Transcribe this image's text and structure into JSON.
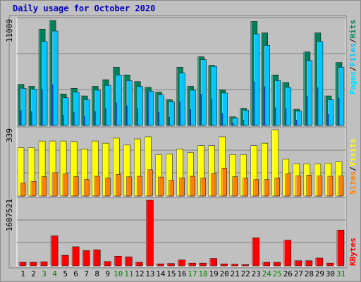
{
  "title": "Daily usage for October 2020",
  "colors": {
    "hits": "#00805a",
    "files": "#00c8ff",
    "pages": "#00e0ff",
    "visits": "#ffff00",
    "sites": "#ff8000",
    "kbytes": "#ff0000",
    "weekend_label": "#008000",
    "weekday_label": "#000000",
    "title": "#0000c0"
  },
  "chart_data": [
    {
      "type": "bar",
      "panel": "hits-files-pages",
      "max_label": "11009",
      "ylim": [
        0,
        11009
      ],
      "categories": [
        "1",
        "2",
        "3",
        "4",
        "5",
        "6",
        "7",
        "8",
        "9",
        "10",
        "11",
        "12",
        "13",
        "14",
        "15",
        "16",
        "17",
        "18",
        "19",
        "20",
        "21",
        "22",
        "23",
        "24",
        "25",
        "26",
        "27",
        "28",
        "29",
        "30",
        "31"
      ],
      "weekend_days": [
        "3",
        "4",
        "10",
        "11",
        "17",
        "18",
        "24",
        "25",
        "31"
      ],
      "legend": [
        "Pages",
        "/",
        "Files",
        "/",
        "Hits"
      ],
      "series": [
        {
          "name": "Hits",
          "values": [
            4300,
            4100,
            10100,
            11000,
            3300,
            3900,
            3100,
            4100,
            4800,
            6100,
            5300,
            4600,
            4000,
            3500,
            2700,
            6100,
            4100,
            7200,
            6300,
            3700,
            900,
            1800,
            10900,
            9700,
            5300,
            4500,
            1700,
            7700,
            9700,
            3100,
            6600
          ]
        },
        {
          "name": "Files",
          "values": [
            3900,
            3800,
            8800,
            9900,
            2900,
            3500,
            2700,
            3700,
            4200,
            5300,
            4700,
            4100,
            3600,
            3200,
            2500,
            5500,
            3700,
            6900,
            6200,
            3400,
            800,
            1600,
            9600,
            8400,
            4700,
            4000,
            1500,
            6800,
            8800,
            2700,
            6100
          ]
        },
        {
          "name": "Pages",
          "values": [
            1600,
            1500,
            3800,
            4300,
            1100,
            1400,
            1000,
            1500,
            1800,
            2400,
            2100,
            1800,
            3500,
            1400,
            900,
            2500,
            1700,
            3300,
            2800,
            1300,
            300,
            600,
            4600,
            4100,
            1900,
            1800,
            600,
            3100,
            4000,
            1200,
            2900
          ]
        }
      ]
    },
    {
      "type": "bar",
      "panel": "visits-sites",
      "max_label": "339",
      "ylim": [
        0,
        339
      ],
      "categories": [
        "1",
        "2",
        "3",
        "4",
        "5",
        "6",
        "7",
        "8",
        "9",
        "10",
        "11",
        "12",
        "13",
        "14",
        "15",
        "16",
        "17",
        "18",
        "19",
        "20",
        "21",
        "22",
        "23",
        "24",
        "25",
        "26",
        "27",
        "28",
        "29",
        "30",
        "31"
      ],
      "legend": [
        "Sites",
        "/",
        "Visits"
      ],
      "series": [
        {
          "name": "Visits",
          "values": [
            247,
            247,
            281,
            281,
            281,
            278,
            240,
            281,
            270,
            296,
            261,
            292,
            303,
            211,
            215,
            240,
            222,
            257,
            257,
            303,
            211,
            211,
            257,
            270,
            339,
            188,
            164,
            164,
            164,
            168,
            175
          ]
        },
        {
          "name": "Sites",
          "values": [
            66,
            75,
            99,
            119,
            113,
            99,
            84,
            101,
            92,
            110,
            98,
            101,
            134,
            97,
            81,
            92,
            101,
            92,
            115,
            143,
            99,
            92,
            84,
            84,
            92,
            113,
            103,
            107,
            102,
            101,
            102
          ]
        }
      ]
    },
    {
      "type": "bar",
      "panel": "kbytes",
      "max_label": "1687521",
      "ylim": [
        0,
        1687521
      ],
      "categories": [
        "1",
        "2",
        "3",
        "4",
        "5",
        "6",
        "7",
        "8",
        "9",
        "10",
        "11",
        "12",
        "13",
        "14",
        "15",
        "16",
        "17",
        "18",
        "19",
        "20",
        "21",
        "22",
        "23",
        "24",
        "25",
        "26",
        "27",
        "28",
        "29",
        "30",
        "31"
      ],
      "legend": [
        "KBytes"
      ],
      "series": [
        {
          "name": "KBytes",
          "values": [
            90000,
            90000,
            100000,
            770000,
            270000,
            490000,
            390000,
            410000,
            110000,
            250000,
            230000,
            90000,
            1687521,
            50000,
            60000,
            150000,
            70000,
            70000,
            190000,
            50000,
            40000,
            30000,
            720000,
            90000,
            90000,
            660000,
            130000,
            130000,
            200000,
            70000,
            920000
          ]
        }
      ]
    }
  ]
}
